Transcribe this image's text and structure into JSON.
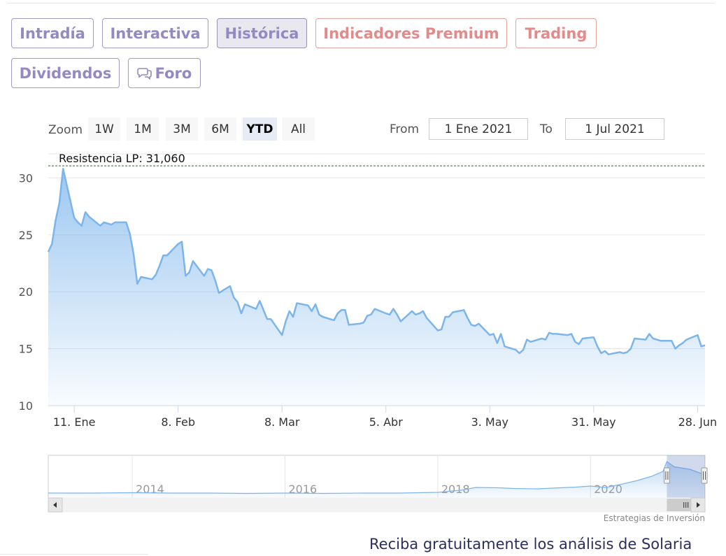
{
  "tabs": [
    {
      "label": "Intradía",
      "active": false,
      "premium": false
    },
    {
      "label": "Interactiva",
      "active": false,
      "premium": false
    },
    {
      "label": "Histórica",
      "active": true,
      "premium": false
    },
    {
      "label": "Indicadores Premium",
      "active": false,
      "premium": true
    },
    {
      "label": "Trading",
      "active": false,
      "premium": true
    },
    {
      "label": "Dividendos",
      "active": false,
      "premium": false
    },
    {
      "label": "Foro",
      "active": false,
      "premium": false,
      "icon": "chat-bubbles-icon"
    }
  ],
  "range_selector": {
    "zoom_label": "Zoom",
    "buttons": [
      "1W",
      "1M",
      "3M",
      "6M",
      "YTD",
      "All"
    ],
    "selected": "YTD",
    "from_label": "From",
    "from_value": "1 Ene 2021",
    "to_label": "To",
    "to_value": "1 Jul 2021"
  },
  "chart_data": {
    "type": "area",
    "color": "#7cb5ec",
    "ylim": [
      10,
      31.5
    ],
    "yticks": [
      10,
      15,
      20,
      25,
      30
    ],
    "xticks": [
      {
        "date": "2021-01-11",
        "label": "11. Ene"
      },
      {
        "date": "2021-02-08",
        "label": "8. Feb"
      },
      {
        "date": "2021-03-08",
        "label": "8. Mar"
      },
      {
        "date": "2021-04-05",
        "label": "5. Abr"
      },
      {
        "date": "2021-05-03",
        "label": "3. May"
      },
      {
        "date": "2021-05-31",
        "label": "31. May"
      },
      {
        "date": "2021-06-28",
        "label": "28. Jun"
      }
    ],
    "plot_lines": [
      {
        "value": 31.06,
        "label": "Resistencia LP: 31,060",
        "color": "#1a7a1a",
        "dash": true
      }
    ],
    "series": [
      {
        "values": [
          [
            "2021-01-04",
            23.5
          ],
          [
            "2021-01-05",
            24.2
          ],
          [
            "2021-01-06",
            26.3
          ],
          [
            "2021-01-07",
            27.8
          ],
          [
            "2021-01-08",
            30.8
          ],
          [
            "2021-01-11",
            26.5
          ],
          [
            "2021-01-12",
            26.1
          ],
          [
            "2021-01-13",
            25.8
          ],
          [
            "2021-01-14",
            27.0
          ],
          [
            "2021-01-15",
            26.6
          ],
          [
            "2021-01-18",
            25.8
          ],
          [
            "2021-01-19",
            26.1
          ],
          [
            "2021-01-20",
            26.0
          ],
          [
            "2021-01-21",
            25.9
          ],
          [
            "2021-01-22",
            26.1
          ],
          [
            "2021-01-25",
            26.1
          ],
          [
            "2021-01-26",
            25.1
          ],
          [
            "2021-01-27",
            23.3
          ],
          [
            "2021-01-28",
            20.7
          ],
          [
            "2021-01-29",
            21.3
          ],
          [
            "2021-02-01",
            21.1
          ],
          [
            "2021-02-02",
            21.5
          ],
          [
            "2021-02-03",
            22.3
          ],
          [
            "2021-02-04",
            23.2
          ],
          [
            "2021-02-05",
            23.2
          ],
          [
            "2021-02-08",
            24.2
          ],
          [
            "2021-02-09",
            24.4
          ],
          [
            "2021-02-10",
            21.4
          ],
          [
            "2021-02-11",
            21.7
          ],
          [
            "2021-02-12",
            22.7
          ],
          [
            "2021-02-15",
            21.4
          ],
          [
            "2021-02-16",
            22.0
          ],
          [
            "2021-02-17",
            21.9
          ],
          [
            "2021-02-18",
            21.0
          ],
          [
            "2021-02-19",
            19.9
          ],
          [
            "2021-02-22",
            20.5
          ],
          [
            "2021-02-23",
            19.5
          ],
          [
            "2021-02-24",
            19.1
          ],
          [
            "2021-02-25",
            18.1
          ],
          [
            "2021-02-26",
            18.9
          ],
          [
            "2021-03-01",
            18.5
          ],
          [
            "2021-03-02",
            19.2
          ],
          [
            "2021-03-03",
            18.4
          ],
          [
            "2021-03-04",
            17.6
          ],
          [
            "2021-03-05",
            17.6
          ],
          [
            "2021-03-08",
            16.2
          ],
          [
            "2021-03-09",
            17.4
          ],
          [
            "2021-03-10",
            18.3
          ],
          [
            "2021-03-11",
            17.8
          ],
          [
            "2021-03-12",
            19.0
          ],
          [
            "2021-03-15",
            18.8
          ],
          [
            "2021-03-16",
            18.3
          ],
          [
            "2021-03-17",
            18.9
          ],
          [
            "2021-03-18",
            18.0
          ],
          [
            "2021-03-19",
            17.8
          ],
          [
            "2021-03-22",
            17.5
          ],
          [
            "2021-03-23",
            18.1
          ],
          [
            "2021-03-24",
            18.4
          ],
          [
            "2021-03-25",
            18.4
          ],
          [
            "2021-03-26",
            17.1
          ],
          [
            "2021-03-29",
            17.2
          ],
          [
            "2021-03-30",
            17.3
          ],
          [
            "2021-03-31",
            17.9
          ],
          [
            "2021-04-01",
            18.0
          ],
          [
            "2021-04-02",
            18.5
          ],
          [
            "2021-04-05",
            18.1
          ],
          [
            "2021-04-06",
            18.0
          ],
          [
            "2021-04-07",
            18.5
          ],
          [
            "2021-04-08",
            18.0
          ],
          [
            "2021-04-09",
            17.4
          ],
          [
            "2021-04-12",
            18.3
          ],
          [
            "2021-04-13",
            18.0
          ],
          [
            "2021-04-14",
            18.1
          ],
          [
            "2021-04-15",
            18.3
          ],
          [
            "2021-04-16",
            17.7
          ],
          [
            "2021-04-19",
            16.6
          ],
          [
            "2021-04-20",
            16.7
          ],
          [
            "2021-04-21",
            17.8
          ],
          [
            "2021-04-22",
            17.8
          ],
          [
            "2021-04-23",
            18.2
          ],
          [
            "2021-04-26",
            18.4
          ],
          [
            "2021-04-27",
            17.7
          ],
          [
            "2021-04-28",
            17.1
          ],
          [
            "2021-04-29",
            17.0
          ],
          [
            "2021-04-30",
            17.2
          ],
          [
            "2021-05-03",
            16.2
          ],
          [
            "2021-05-04",
            16.3
          ],
          [
            "2021-05-05",
            15.5
          ],
          [
            "2021-05-06",
            16.3
          ],
          [
            "2021-05-07",
            15.2
          ],
          [
            "2021-05-10",
            14.9
          ],
          [
            "2021-05-11",
            14.6
          ],
          [
            "2021-05-12",
            14.9
          ],
          [
            "2021-05-13",
            15.8
          ],
          [
            "2021-05-14",
            15.6
          ],
          [
            "2021-05-17",
            15.9
          ],
          [
            "2021-05-18",
            15.8
          ],
          [
            "2021-05-19",
            16.4
          ],
          [
            "2021-05-20",
            16.3
          ],
          [
            "2021-05-21",
            16.3
          ],
          [
            "2021-05-24",
            16.2
          ],
          [
            "2021-05-25",
            16.3
          ],
          [
            "2021-05-26",
            15.6
          ],
          [
            "2021-05-27",
            15.4
          ],
          [
            "2021-05-28",
            15.9
          ],
          [
            "2021-05-31",
            16.0
          ],
          [
            "2021-06-01",
            15.2
          ],
          [
            "2021-06-02",
            14.6
          ],
          [
            "2021-06-03",
            14.8
          ],
          [
            "2021-06-04",
            14.5
          ],
          [
            "2021-06-07",
            14.7
          ],
          [
            "2021-06-08",
            14.6
          ],
          [
            "2021-06-09",
            14.7
          ],
          [
            "2021-06-10",
            15.0
          ],
          [
            "2021-06-11",
            15.9
          ],
          [
            "2021-06-14",
            15.8
          ],
          [
            "2021-06-15",
            16.3
          ],
          [
            "2021-06-16",
            15.9
          ],
          [
            "2021-06-17",
            15.8
          ],
          [
            "2021-06-18",
            15.7
          ],
          [
            "2021-06-21",
            15.7
          ],
          [
            "2021-06-22",
            15.0
          ],
          [
            "2021-06-23",
            15.3
          ],
          [
            "2021-06-24",
            15.5
          ],
          [
            "2021-06-25",
            15.8
          ],
          [
            "2021-06-28",
            16.2
          ],
          [
            "2021-06-29",
            15.2
          ],
          [
            "2021-06-30",
            15.3
          ]
        ]
      }
    ]
  },
  "navigator": {
    "year_labels": [
      "2014",
      "2016",
      "2018",
      "2020"
    ],
    "scroll_left_icon": "arrow-left-icon",
    "scroll_right_icon": "arrow-right-icon",
    "scroll_grip_icon": "grip-icon",
    "series": [
      [
        2012.9,
        1.0
      ],
      [
        2013.5,
        1.0
      ],
      [
        2014.0,
        1.1
      ],
      [
        2014.5,
        1.0
      ],
      [
        2015.0,
        1.0
      ],
      [
        2015.5,
        0.9
      ],
      [
        2016.0,
        1.0
      ],
      [
        2016.5,
        0.9
      ],
      [
        2017.0,
        1.0
      ],
      [
        2017.5,
        1.0
      ],
      [
        2018.0,
        1.2
      ],
      [
        2018.3,
        1.8
      ],
      [
        2018.5,
        2.6
      ],
      [
        2018.8,
        2.5
      ],
      [
        2019.0,
        2.3
      ],
      [
        2019.3,
        2.2
      ],
      [
        2019.5,
        2.4
      ],
      [
        2019.8,
        2.7
      ],
      [
        2020.0,
        3.0
      ],
      [
        2020.2,
        2.6
      ],
      [
        2020.4,
        3.5
      ],
      [
        2020.6,
        4.5
      ],
      [
        2020.8,
        5.8
      ],
      [
        2020.95,
        7.2
      ],
      [
        2021.0,
        10.0
      ],
      [
        2021.1,
        8.5
      ],
      [
        2021.3,
        7.8
      ],
      [
        2021.5,
        6.2
      ]
    ]
  },
  "credits": "Estrategias de Inversión",
  "cta": "Reciba gratuitamente los análisis de Solaria"
}
